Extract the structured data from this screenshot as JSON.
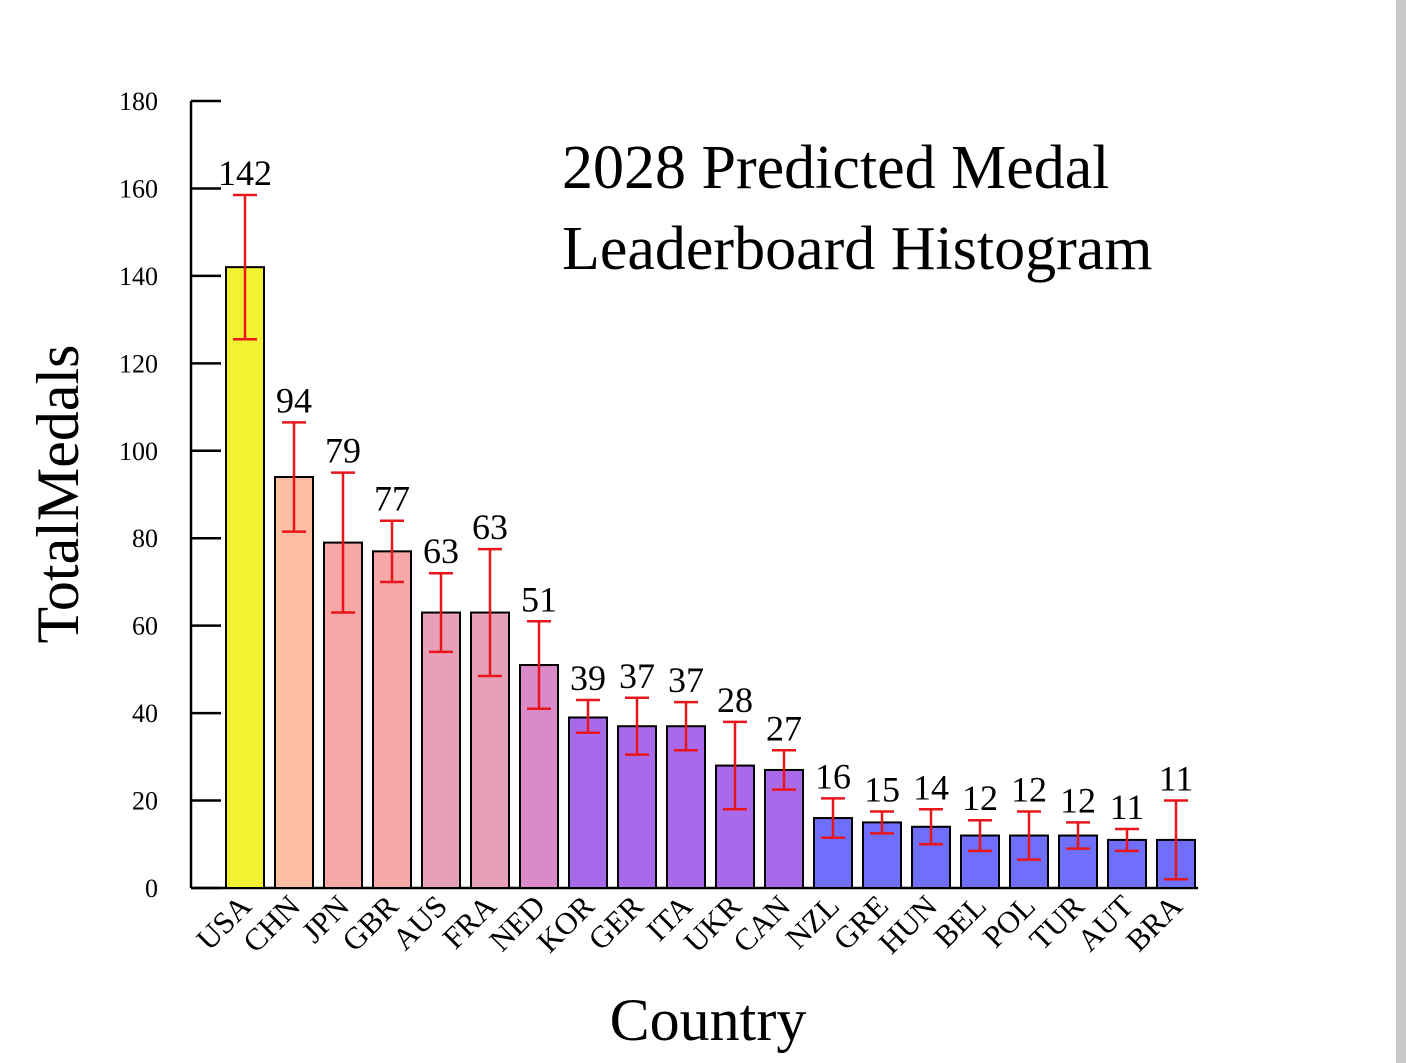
{
  "chart_data": {
    "type": "bar",
    "title_lines": [
      "2028 Predicted Medal",
      "Leaderboard Histogram"
    ],
    "xlabel": "Country",
    "ylabel": "TotalMedals",
    "ylim": [
      0,
      180
    ],
    "yticks": [
      0,
      20,
      40,
      60,
      80,
      100,
      120,
      140,
      160,
      180
    ],
    "grid": false,
    "categories": [
      "USA",
      "CHN",
      "JPN",
      "GBR",
      "AUS",
      "FRA",
      "NED",
      "KOR",
      "GER",
      "ITA",
      "UKR",
      "CAN",
      "NZL",
      "GRE",
      "HUN",
      "BEL",
      "POL",
      "TUR",
      "AUT",
      "BRA"
    ],
    "values": [
      142,
      94,
      79,
      77,
      63,
      63,
      51,
      39,
      37,
      37,
      28,
      27,
      16,
      15,
      14,
      12,
      12,
      12,
      11,
      11
    ],
    "error_low": [
      125.5,
      81.5,
      63,
      70,
      54,
      48.5,
      41,
      35.5,
      30.5,
      31.5,
      18,
      22.5,
      11.5,
      12.5,
      10,
      8.5,
      6.5,
      9,
      8.5,
      2
    ],
    "error_high": [
      158.5,
      106.5,
      95,
      84,
      72,
      77.5,
      61,
      43,
      43.5,
      42.5,
      38,
      31.5,
      20.5,
      17.5,
      18,
      15.5,
      17.5,
      15,
      13.5,
      20
    ],
    "value_labels": [
      "142",
      "94",
      "79",
      "77",
      "63",
      "63",
      "51",
      "39",
      "37",
      "37",
      "28",
      "27",
      "16",
      "15",
      "14",
      "12",
      "12",
      "12",
      "11",
      "11"
    ],
    "bar_colors": [
      "#f2f230",
      "#fdbfa3",
      "#f6a7a6",
      "#f6a7a6",
      "#e7a0b8",
      "#e7a0b8",
      "#da89c9",
      "#a86aea",
      "#a86aea",
      "#a86aea",
      "#a86aea",
      "#a86aea",
      "#6f6ffb",
      "#6f6ffb",
      "#6f6ffb",
      "#6f6ffb",
      "#6f6ffb",
      "#6f6ffb",
      "#6f6ffb",
      "#6f6ffb"
    ],
    "error_bar_color": "#e8161b"
  }
}
